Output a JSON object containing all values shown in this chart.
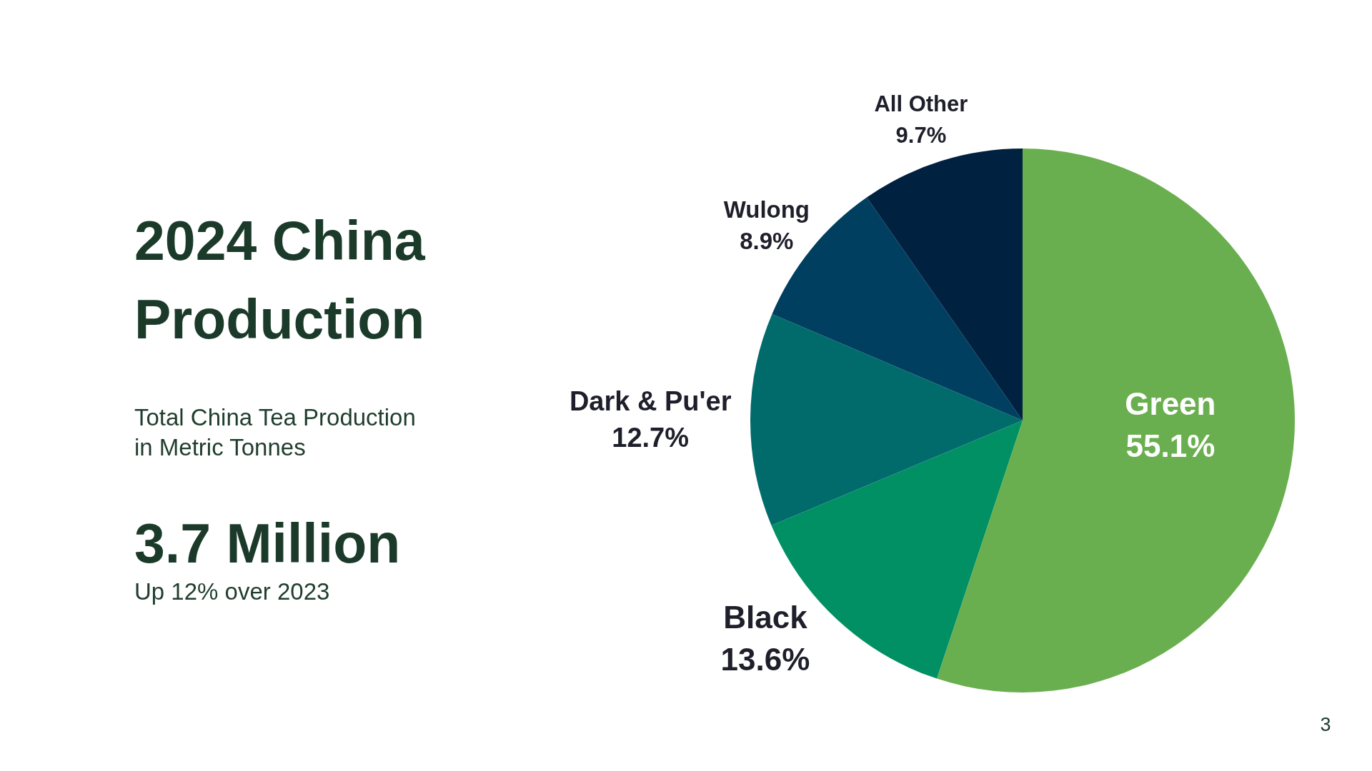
{
  "chart_data": {
    "type": "pie",
    "title": "2024 China Production",
    "subtitle": "Total China Tea Production in Metric Tonnes",
    "annotations": [
      "3.7 Million",
      "Up 12% over 2023",
      "3"
    ],
    "categories": [
      "Green",
      "Black",
      "Dark & Pu'er",
      "Wulong",
      "All Other"
    ],
    "values": [
      55.1,
      13.6,
      12.7,
      8.9,
      9.7
    ],
    "value_labels": [
      "55.1%",
      "13.6%",
      "12.7%",
      "8.9%",
      "9.7%"
    ],
    "colors": [
      "#6aaf4f",
      "#009064",
      "#016b6c",
      "#003f5f",
      "#002140"
    ]
  }
}
